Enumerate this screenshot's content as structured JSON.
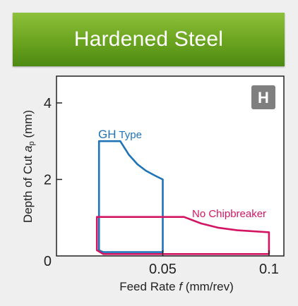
{
  "header": {
    "title": "Hardened Steel",
    "gradient_colors": [
      "#8dc03a",
      "#4d8a12"
    ]
  },
  "badge": {
    "letter": "H",
    "color": "#7f7f7f"
  },
  "chart_data": {
    "type": "area",
    "title": "",
    "xlabel_parts": [
      "Feed Rate ",
      "f",
      " (mm/rev)"
    ],
    "ylabel_parts": [
      "Depth of Cut ",
      "a",
      "p",
      " (mm)"
    ],
    "xlim": [
      0,
      0.107
    ],
    "ylim": [
      0,
      4.7
    ],
    "x_ticks": [
      {
        "value": 0.05,
        "label": "0.05"
      },
      {
        "value": 0.1,
        "label": "0.1"
      }
    ],
    "y_ticks": [
      {
        "value": 0,
        "label": "0"
      },
      {
        "value": 2,
        "label": "2"
      },
      {
        "value": 4,
        "label": "4"
      }
    ],
    "grid": false,
    "series": [
      {
        "name_parts": [
          "GH",
          " Type"
        ],
        "color": "#1f73b7",
        "outline": [
          [
            0.02,
            0.15
          ],
          [
            0.02,
            3.0
          ],
          [
            0.03,
            3.0
          ],
          [
            0.034,
            2.65
          ],
          [
            0.038,
            2.4
          ],
          [
            0.042,
            2.23
          ],
          [
            0.046,
            2.11
          ],
          [
            0.05,
            2.0
          ],
          [
            0.05,
            0.1
          ],
          [
            0.022,
            0.1
          ],
          [
            0.02,
            0.15
          ]
        ]
      },
      {
        "name_parts": [
          "No Chipbreaker"
        ],
        "color": "#d31463",
        "outline": [
          [
            0.019,
            1.02
          ],
          [
            0.06,
            1.02
          ],
          [
            0.068,
            0.85
          ],
          [
            0.076,
            0.74
          ],
          [
            0.085,
            0.67
          ],
          [
            0.1,
            0.62
          ],
          [
            0.1,
            0.05
          ],
          [
            0.022,
            0.05
          ],
          [
            0.019,
            0.15
          ],
          [
            0.019,
            1.02
          ]
        ]
      }
    ]
  }
}
